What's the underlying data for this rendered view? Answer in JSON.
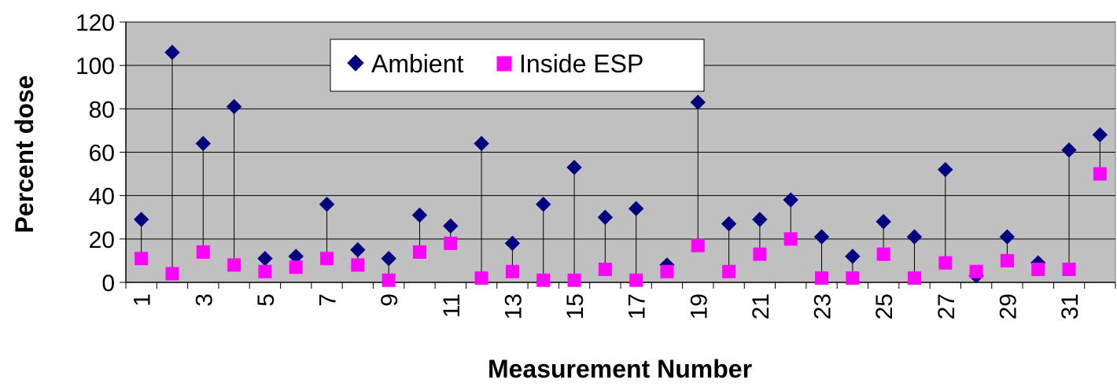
{
  "chart_data": {
    "type": "scatter",
    "title": "",
    "xlabel": "Measurement Number",
    "ylabel": "Percent dose",
    "ylim": [
      0,
      120
    ],
    "yticks": [
      "0",
      "20",
      "40",
      "60",
      "80",
      "100",
      "120"
    ],
    "x": [
      1,
      2,
      3,
      4,
      5,
      6,
      7,
      8,
      9,
      10,
      11,
      12,
      13,
      14,
      15,
      16,
      17,
      18,
      19,
      20,
      21,
      22,
      23,
      24,
      25,
      26,
      27,
      28,
      29,
      30,
      31,
      32
    ],
    "xtick_labels": [
      "1",
      "3",
      "5",
      "7",
      "9",
      "11",
      "13",
      "15",
      "17",
      "19",
      "21",
      "23",
      "25",
      "27",
      "29",
      "31"
    ],
    "grid": true,
    "legend_placement": "top-center",
    "drop_lines": true,
    "plot_background": "#c0c0c0",
    "series": [
      {
        "name": "Ambient",
        "marker": "diamond",
        "color": "#000080",
        "values": [
          29,
          106,
          64,
          81,
          11,
          12,
          36,
          15,
          11,
          31,
          26,
          64,
          18,
          36,
          53,
          30,
          34,
          8,
          83,
          27,
          29,
          38,
          21,
          12,
          28,
          21,
          52,
          3,
          21,
          9,
          61,
          68
        ]
      },
      {
        "name": "Inside ESP",
        "marker": "square",
        "color": "#ff00ff",
        "values": [
          11,
          4,
          14,
          8,
          5,
          7,
          11,
          8,
          1,
          14,
          18,
          2,
          5,
          1,
          1,
          6,
          1,
          5,
          17,
          5,
          13,
          20,
          2,
          2,
          13,
          2,
          9,
          5,
          10,
          6,
          6,
          50
        ]
      }
    ]
  }
}
